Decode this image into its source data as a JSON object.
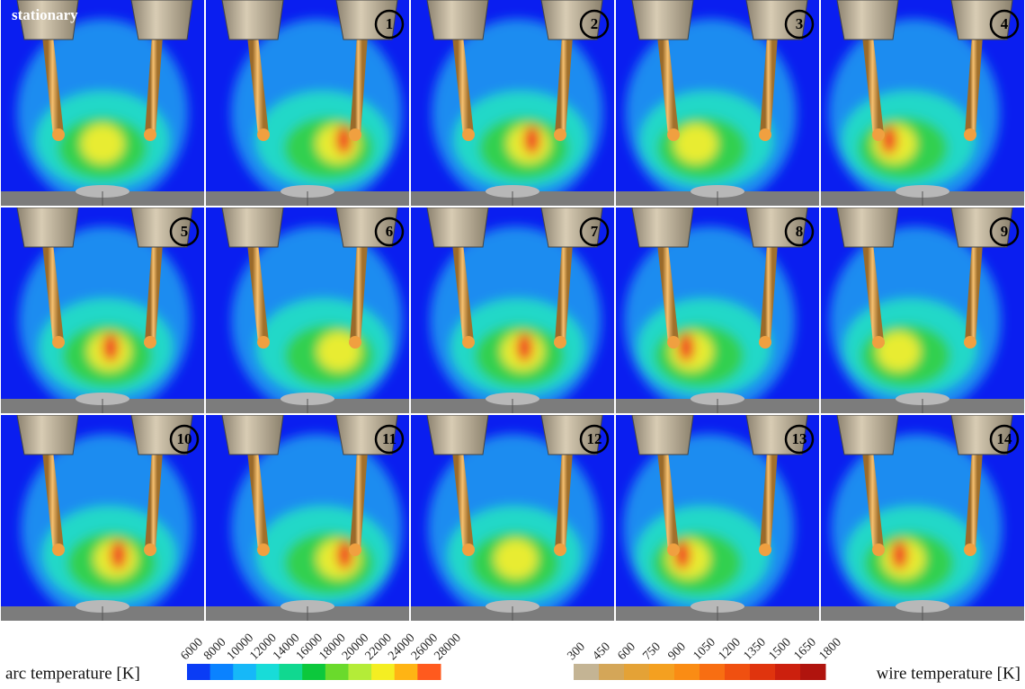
{
  "panels": [
    {
      "label": "stationary"
    },
    {
      "label": "1"
    },
    {
      "label": "2"
    },
    {
      "label": "3"
    },
    {
      "label": "4"
    },
    {
      "label": "5"
    },
    {
      "label": "6"
    },
    {
      "label": "7"
    },
    {
      "label": "8"
    },
    {
      "label": "9"
    },
    {
      "label": "10"
    },
    {
      "label": "11"
    },
    {
      "label": "12"
    },
    {
      "label": "13"
    },
    {
      "label": "14"
    }
  ],
  "arc_colorbar": {
    "title": "arc temperature [K]",
    "ticks": [
      6000,
      8000,
      10000,
      12000,
      14000,
      16000,
      18000,
      20000,
      22000,
      24000,
      26000,
      28000
    ],
    "colors": [
      "#0a3cf5",
      "#0a82ff",
      "#16b8f8",
      "#18dcd8",
      "#10d890",
      "#0cc83c",
      "#6ada2c",
      "#b4ec38",
      "#f4ee22",
      "#ffb414",
      "#ff5a1e"
    ]
  },
  "wire_colorbar": {
    "title": "wire temperature [K]",
    "ticks": [
      300,
      450,
      600,
      750,
      900,
      1050,
      1200,
      1350,
      1500,
      1650,
      1800
    ],
    "colors": [
      "#c4b494",
      "#d4a658",
      "#e4a236",
      "#f4a020",
      "#fa8c14",
      "#f86e12",
      "#f05010",
      "#e0340e",
      "#cc200e",
      "#b0140e"
    ]
  }
}
